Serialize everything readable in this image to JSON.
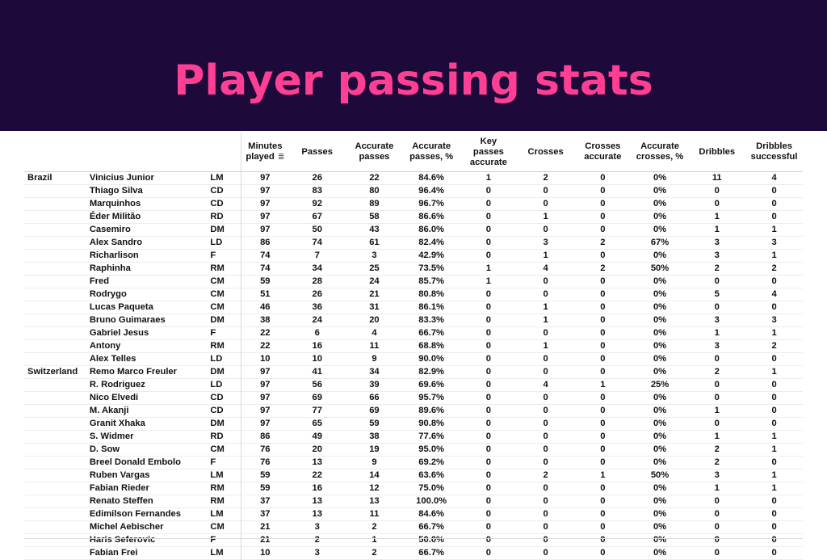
{
  "title": "Player passing stats",
  "chart_data": {
    "type": "table",
    "columns": [
      "Minutes played",
      "Passes",
      "Accurate passes",
      "Accurate passes, %",
      "Key passes accurate",
      "Crosses",
      "Crosses accurate",
      "Accurate crosses, %",
      "Dribbles",
      "Dribbles successful"
    ],
    "header_lines": [
      [
        "Minutes",
        "played"
      ],
      [
        "Passes"
      ],
      [
        "Accurate",
        "passes"
      ],
      [
        "Accurate",
        "passes, %"
      ],
      [
        "Key",
        "passes",
        "accurate"
      ],
      [
        "Crosses"
      ],
      [
        "Crosses",
        "accurate"
      ],
      [
        "Accurate",
        "crosses, %"
      ],
      [
        "Dribbles"
      ],
      [
        "Dribbles",
        "successful"
      ]
    ],
    "sort_icon": "sort-descending-icon",
    "rows": [
      {
        "country": "Brazil",
        "player": "Vinicius Junior",
        "pos": "LM",
        "values": [
          "97",
          "26",
          "22",
          "84.6%",
          "1",
          "2",
          "0",
          "0%",
          "11",
          "4"
        ]
      },
      {
        "country": "",
        "player": "Thiago Silva",
        "pos": "CD",
        "values": [
          "97",
          "83",
          "80",
          "96.4%",
          "0",
          "0",
          "0",
          "0%",
          "0",
          "0"
        ]
      },
      {
        "country": "",
        "player": "Marquinhos",
        "pos": "CD",
        "values": [
          "97",
          "92",
          "89",
          "96.7%",
          "0",
          "0",
          "0",
          "0%",
          "0",
          "0"
        ]
      },
      {
        "country": "",
        "player": "Éder Militão",
        "pos": "RD",
        "values": [
          "97",
          "67",
          "58",
          "86.6%",
          "0",
          "1",
          "0",
          "0%",
          "1",
          "0"
        ]
      },
      {
        "country": "",
        "player": "Casemiro",
        "pos": "DM",
        "values": [
          "97",
          "50",
          "43",
          "86.0%",
          "0",
          "0",
          "0",
          "0%",
          "1",
          "1"
        ]
      },
      {
        "country": "",
        "player": "Alex Sandro",
        "pos": "LD",
        "values": [
          "86",
          "74",
          "61",
          "82.4%",
          "0",
          "3",
          "2",
          "67%",
          "3",
          "3"
        ]
      },
      {
        "country": "",
        "player": "Richarlison",
        "pos": "F",
        "values": [
          "74",
          "7",
          "3",
          "42.9%",
          "0",
          "1",
          "0",
          "0%",
          "3",
          "1"
        ]
      },
      {
        "country": "",
        "player": "Raphinha",
        "pos": "RM",
        "values": [
          "74",
          "34",
          "25",
          "73.5%",
          "1",
          "4",
          "2",
          "50%",
          "2",
          "2"
        ]
      },
      {
        "country": "",
        "player": "Fred",
        "pos": "CM",
        "values": [
          "59",
          "28",
          "24",
          "85.7%",
          "1",
          "0",
          "0",
          "0%",
          "0",
          "0"
        ]
      },
      {
        "country": "",
        "player": "Rodrygo",
        "pos": "CM",
        "values": [
          "51",
          "26",
          "21",
          "80.8%",
          "0",
          "0",
          "0",
          "0%",
          "5",
          "4"
        ]
      },
      {
        "country": "",
        "player": "Lucas Paqueta",
        "pos": "CM",
        "values": [
          "46",
          "36",
          "31",
          "86.1%",
          "0",
          "1",
          "0",
          "0%",
          "0",
          "0"
        ]
      },
      {
        "country": "",
        "player": "Bruno Guimaraes",
        "pos": "DM",
        "values": [
          "38",
          "24",
          "20",
          "83.3%",
          "0",
          "1",
          "0",
          "0%",
          "3",
          "3"
        ]
      },
      {
        "country": "",
        "player": "Gabriel Jesus",
        "pos": "F",
        "values": [
          "22",
          "6",
          "4",
          "66.7%",
          "0",
          "0",
          "0",
          "0%",
          "1",
          "1"
        ]
      },
      {
        "country": "",
        "player": "Antony",
        "pos": "RM",
        "values": [
          "22",
          "16",
          "11",
          "68.8%",
          "0",
          "1",
          "0",
          "0%",
          "3",
          "2"
        ]
      },
      {
        "country": "",
        "player": "Alex Telles",
        "pos": "LD",
        "values": [
          "10",
          "10",
          "9",
          "90.0%",
          "0",
          "0",
          "0",
          "0%",
          "0",
          "0"
        ]
      },
      {
        "country": "Switzerland",
        "player": "Remo Marco Freuler",
        "pos": "DM",
        "values": [
          "97",
          "41",
          "34",
          "82.9%",
          "0",
          "0",
          "0",
          "0%",
          "2",
          "1"
        ]
      },
      {
        "country": "",
        "player": "R. Rodriguez",
        "pos": "LD",
        "values": [
          "97",
          "56",
          "39",
          "69.6%",
          "0",
          "4",
          "1",
          "25%",
          "0",
          "0"
        ]
      },
      {
        "country": "",
        "player": "Nico Elvedi",
        "pos": "CD",
        "values": [
          "97",
          "69",
          "66",
          "95.7%",
          "0",
          "0",
          "0",
          "0%",
          "0",
          "0"
        ]
      },
      {
        "country": "",
        "player": "M. Akanji",
        "pos": "CD",
        "values": [
          "97",
          "77",
          "69",
          "89.6%",
          "0",
          "0",
          "0",
          "0%",
          "1",
          "0"
        ]
      },
      {
        "country": "",
        "player": "Granit Xhaka",
        "pos": "DM",
        "values": [
          "97",
          "65",
          "59",
          "90.8%",
          "0",
          "0",
          "0",
          "0%",
          "0",
          "0"
        ]
      },
      {
        "country": "",
        "player": "S. Widmer",
        "pos": "RD",
        "values": [
          "86",
          "49",
          "38",
          "77.6%",
          "0",
          "0",
          "0",
          "0%",
          "1",
          "1"
        ]
      },
      {
        "country": "",
        "player": "D. Sow",
        "pos": "CM",
        "values": [
          "76",
          "20",
          "19",
          "95.0%",
          "0",
          "0",
          "0",
          "0%",
          "2",
          "1"
        ]
      },
      {
        "country": "",
        "player": "Breel Donald Embolo",
        "pos": "F",
        "values": [
          "76",
          "13",
          "9",
          "69.2%",
          "0",
          "0",
          "0",
          "0%",
          "2",
          "0"
        ]
      },
      {
        "country": "",
        "player": "Ruben Vargas",
        "pos": "LM",
        "values": [
          "59",
          "22",
          "14",
          "63.6%",
          "0",
          "2",
          "1",
          "50%",
          "3",
          "1"
        ]
      },
      {
        "country": "",
        "player": "Fabian Rieder",
        "pos": "RM",
        "values": [
          "59",
          "16",
          "12",
          "75.0%",
          "0",
          "0",
          "0",
          "0%",
          "1",
          "1"
        ]
      },
      {
        "country": "",
        "player": "Renato Steffen",
        "pos": "RM",
        "values": [
          "37",
          "13",
          "13",
          "100.0%",
          "0",
          "0",
          "0",
          "0%",
          "0",
          "0"
        ]
      },
      {
        "country": "",
        "player": "Edimilson Fernandes",
        "pos": "LM",
        "values": [
          "37",
          "13",
          "11",
          "84.6%",
          "0",
          "0",
          "0",
          "0%",
          "0",
          "0"
        ]
      },
      {
        "country": "",
        "player": "Michel Aebischer",
        "pos": "CM",
        "values": [
          "21",
          "3",
          "2",
          "66.7%",
          "0",
          "0",
          "0",
          "0%",
          "0",
          "0"
        ]
      },
      {
        "country": "",
        "player": "Haris Seferovic",
        "pos": "F",
        "values": [
          "21",
          "2",
          "1",
          "50.0%",
          "0",
          "0",
          "0",
          "0%",
          "0",
          "0"
        ]
      },
      {
        "country": "",
        "player": "Fabian Frei",
        "pos": "LM",
        "values": [
          "10",
          "3",
          "2",
          "66.7%",
          "0",
          "0",
          "0",
          "0%",
          "0",
          "0"
        ]
      }
    ]
  },
  "colors": {
    "banner": "#1d0a3b",
    "title": "#ff3f94",
    "grid": "#d9d9d9"
  }
}
